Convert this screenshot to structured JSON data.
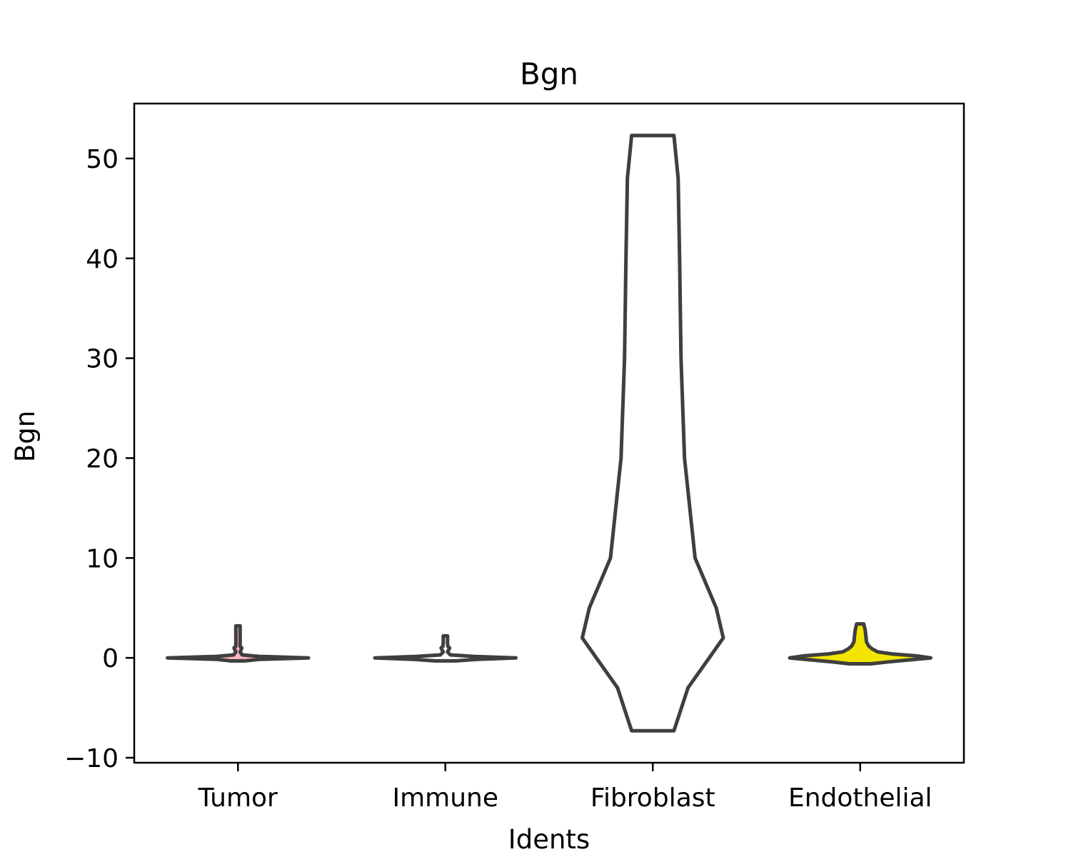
{
  "chart_data": {
    "type": "violin",
    "title": "Bgn",
    "xlabel": "Idents",
    "ylabel": "Bgn",
    "ylim": [
      -10.5,
      55.5
    ],
    "yticks": [
      -10,
      0,
      10,
      20,
      30,
      40,
      50
    ],
    "ytick_labels": [
      "−10",
      "0",
      "10",
      "20",
      "30",
      "40",
      "50"
    ],
    "grid": false,
    "categories": [
      "Tumor",
      "Immune",
      "Fibroblast",
      "Endothelial"
    ],
    "series": [
      {
        "category": "Tumor",
        "color": "#ffb6c1",
        "outline_color": "#3f3f3f",
        "min": -0.3,
        "max": 3.2,
        "profile": [
          [
            -0.3,
            0.1
          ],
          [
            -0.15,
            0.3
          ],
          [
            0,
            1.0
          ],
          [
            0.15,
            0.3
          ],
          [
            0.3,
            0.06
          ],
          [
            0.6,
            0.03
          ],
          [
            0.9,
            0.05
          ],
          [
            1.0,
            0.055
          ],
          [
            1.15,
            0.03
          ],
          [
            1.5,
            0.02
          ],
          [
            2.5,
            0.018
          ],
          [
            3.2,
            0.014
          ]
        ]
      },
      {
        "category": "Immune",
        "color": "#ffffff",
        "outline_color": "#3f3f3f",
        "min": -0.3,
        "max": 2.2,
        "profile": [
          [
            -0.3,
            0.15
          ],
          [
            -0.15,
            0.45
          ],
          [
            0,
            1.0
          ],
          [
            0.15,
            0.4
          ],
          [
            0.3,
            0.07
          ],
          [
            0.6,
            0.03
          ],
          [
            0.9,
            0.055
          ],
          [
            1.0,
            0.06
          ],
          [
            1.15,
            0.035
          ],
          [
            1.5,
            0.022
          ],
          [
            2.2,
            0.015
          ]
        ]
      },
      {
        "category": "Fibroblast",
        "color": "#ffffff",
        "outline_color": "#3f3f3f",
        "min": -7.3,
        "max": 52.3,
        "profile": [
          [
            -7.3,
            0.3
          ],
          [
            -3,
            0.5
          ],
          [
            0,
            0.8
          ],
          [
            2,
            1.0
          ],
          [
            5,
            0.9
          ],
          [
            10,
            0.6
          ],
          [
            20,
            0.45
          ],
          [
            30,
            0.4
          ],
          [
            40,
            0.38
          ],
          [
            48,
            0.36
          ],
          [
            52.3,
            0.3
          ]
        ]
      },
      {
        "category": "Endothelial",
        "color": "#f2e500",
        "outline_color": "#3f3f3f",
        "min": -0.6,
        "max": 3.4,
        "profile": [
          [
            -0.6,
            0.15
          ],
          [
            -0.4,
            0.4
          ],
          [
            -0.2,
            0.7
          ],
          [
            0,
            1.0
          ],
          [
            0.2,
            0.8
          ],
          [
            0.4,
            0.45
          ],
          [
            0.6,
            0.25
          ],
          [
            0.9,
            0.17
          ],
          [
            1.2,
            0.12
          ],
          [
            1.6,
            0.09
          ],
          [
            2.2,
            0.08
          ],
          [
            2.8,
            0.07
          ],
          [
            3.4,
            0.05
          ]
        ]
      }
    ]
  }
}
